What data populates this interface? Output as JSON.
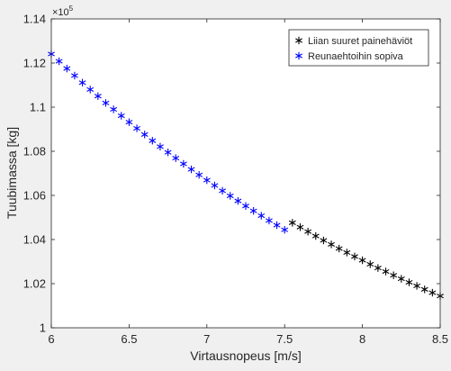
{
  "chart_data": {
    "type": "scatter",
    "title": "",
    "xlabel": "Virtausnopeus [m/s]",
    "ylabel": "Tuubimassa [kg]",
    "xlim": [
      6,
      8.5
    ],
    "ylim": [
      100000,
      114000
    ],
    "y_exponent_label": "×10",
    "y_exponent_power": "5",
    "x_ticks": [
      6,
      6.5,
      7,
      7.5,
      8,
      8.5
    ],
    "x_tick_labels": [
      "6",
      "6.5",
      "7",
      "7.5",
      "8",
      "8.5"
    ],
    "y_ticks": [
      100000,
      102000,
      104000,
      106000,
      108000,
      110000,
      112000,
      114000
    ],
    "y_tick_labels": [
      "1",
      "1.02",
      "1.04",
      "1.06",
      "1.08",
      "1.1",
      "1.12",
      "1.14"
    ],
    "grid": false,
    "legend_position": "top-right",
    "marker": "asterisk",
    "series": [
      {
        "name": "Liian suuret painehäviöt",
        "color": "#000000",
        "x": [
          7.55,
          7.6,
          7.65,
          7.7,
          7.75,
          7.8,
          7.85,
          7.9,
          7.95,
          8.0,
          8.05,
          8.1,
          8.15,
          8.2,
          8.25,
          8.3,
          8.35,
          8.4,
          8.45,
          8.5
        ],
        "y": [
          104760,
          104560,
          104360,
          104160,
          103960,
          103780,
          103590,
          103410,
          103230,
          103060,
          102880,
          102710,
          102550,
          102380,
          102220,
          102060,
          101900,
          101740,
          101590,
          101440
        ]
      },
      {
        "name": "Reunaehtoihin sopiva",
        "color": "#0000ff",
        "x": [
          6.0,
          6.05,
          6.1,
          6.15,
          6.2,
          6.25,
          6.3,
          6.35,
          6.4,
          6.45,
          6.5,
          6.55,
          6.6,
          6.65,
          6.7,
          6.75,
          6.8,
          6.85,
          6.9,
          6.95,
          7.0,
          7.05,
          7.1,
          7.15,
          7.2,
          7.25,
          7.3,
          7.35,
          7.4,
          7.45,
          7.5
        ],
        "y": [
          112410,
          112080,
          111750,
          111430,
          111110,
          110800,
          110500,
          110190,
          109900,
          109610,
          109320,
          109040,
          108760,
          108480,
          108210,
          107950,
          107690,
          107430,
          107180,
          106930,
          106690,
          106450,
          106210,
          105980,
          105750,
          105520,
          105300,
          105080,
          104860,
          104650,
          104440
        ]
      }
    ]
  }
}
